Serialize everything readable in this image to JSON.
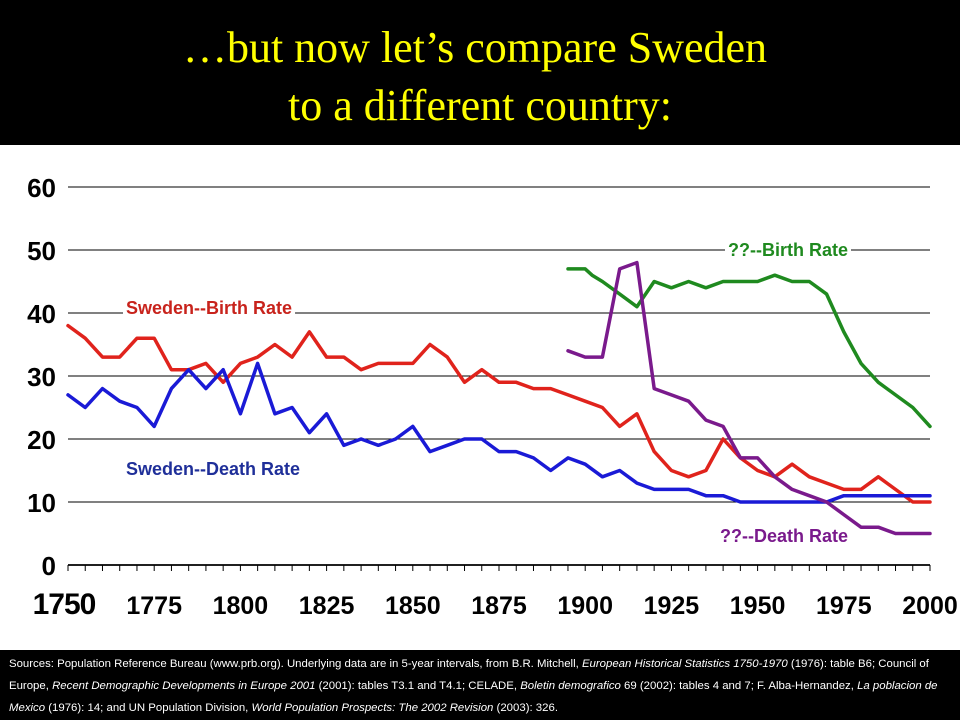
{
  "title": {
    "line1": "…but now let’s compare Sweden",
    "line2": "to a different country:"
  },
  "colors": {
    "title": "#ffff00",
    "sweden_birth": "#e0231c",
    "sweden_death": "#1a1ad6",
    "other_birth": "#1f8a1f",
    "other_death": "#7a1a8c",
    "sweden_birth_label": "#c8231c",
    "sweden_death_label": "#1f2f99",
    "other_birth_label": "#1f8a1f",
    "other_death_label": "#7a1a8c"
  },
  "chart_data": {
    "type": "line",
    "title": "",
    "xlabel": "",
    "ylabel": "",
    "xlim": [
      1750,
      2000
    ],
    "ylim": [
      0,
      60
    ],
    "grid": true,
    "x_ticks": [
      {
        "value": 1750,
        "label": "1750"
      },
      {
        "value": 1775,
        "label": "1775"
      },
      {
        "value": 1800,
        "label": "1800"
      },
      {
        "value": 1825,
        "label": "1825"
      },
      {
        "value": 1850,
        "label": "1850"
      },
      {
        "value": 1875,
        "label": "1875"
      },
      {
        "value": 1900,
        "label": "1900"
      },
      {
        "value": 1925,
        "label": "1925"
      },
      {
        "value": 1950,
        "label": "1950"
      },
      {
        "value": 1975,
        "label": "1975"
      },
      {
        "value": 2000,
        "label": "2000"
      }
    ],
    "y_ticks": [
      {
        "value": 0,
        "label": "0"
      },
      {
        "value": 10,
        "label": "10"
      },
      {
        "value": 20,
        "label": "20"
      },
      {
        "value": 30,
        "label": "30"
      },
      {
        "value": 40,
        "label": "40"
      },
      {
        "value": 50,
        "label": "50"
      },
      {
        "value": 60,
        "label": "60"
      }
    ],
    "series": [
      {
        "name": "Sweden--Birth Rate",
        "color": "#e0231c",
        "x": [
          1750,
          1755,
          1760,
          1765,
          1770,
          1775,
          1780,
          1785,
          1790,
          1795,
          1800,
          1805,
          1810,
          1815,
          1820,
          1825,
          1830,
          1835,
          1840,
          1845,
          1850,
          1855,
          1860,
          1865,
          1870,
          1875,
          1880,
          1885,
          1890,
          1895,
          1900,
          1905,
          1910,
          1915,
          1920,
          1925,
          1930,
          1935,
          1940,
          1945,
          1950,
          1955,
          1960,
          1965,
          1970,
          1975,
          1980,
          1985,
          1990,
          1995,
          2000
        ],
        "values": [
          38,
          36,
          33,
          33,
          36,
          36,
          31,
          31,
          32,
          29,
          32,
          33,
          35,
          33,
          37,
          33,
          33,
          31,
          32,
          32,
          32,
          35,
          33,
          29,
          31,
          29,
          29,
          28,
          28,
          27,
          26,
          25,
          22,
          24,
          18,
          15,
          14,
          15,
          20,
          17,
          15,
          14,
          16,
          14,
          13,
          12,
          12,
          14,
          12,
          10,
          10
        ]
      },
      {
        "name": "Sweden--Death Rate",
        "color": "#1a1ad6",
        "x": [
          1750,
          1755,
          1760,
          1765,
          1770,
          1775,
          1780,
          1785,
          1790,
          1795,
          1800,
          1805,
          1810,
          1815,
          1820,
          1825,
          1830,
          1835,
          1840,
          1845,
          1850,
          1855,
          1860,
          1865,
          1870,
          1875,
          1880,
          1885,
          1890,
          1895,
          1900,
          1905,
          1910,
          1915,
          1920,
          1925,
          1930,
          1935,
          1940,
          1945,
          1950,
          1955,
          1960,
          1965,
          1970,
          1975,
          1980,
          1985,
          1990,
          1995,
          2000
        ],
        "values": [
          27,
          25,
          28,
          26,
          25,
          22,
          28,
          31,
          28,
          31,
          24,
          32,
          24,
          25,
          21,
          24,
          19,
          20,
          19,
          20,
          22,
          18,
          19,
          20,
          20,
          18,
          18,
          17,
          15,
          17,
          16,
          14,
          15,
          13,
          12,
          12,
          12,
          11,
          11,
          10,
          10,
          10,
          10,
          10,
          10,
          11,
          11,
          11,
          11,
          11,
          11
        ]
      },
      {
        "name": "??--Birth Rate",
        "color": "#1f8a1f",
        "x": [
          1895,
          1900,
          1902,
          1905,
          1910,
          1915,
          1920,
          1925,
          1930,
          1935,
          1940,
          1945,
          1950,
          1955,
          1960,
          1965,
          1970,
          1975,
          1980,
          1985,
          1990,
          1995,
          2000
        ],
        "values": [
          47,
          47,
          46,
          45,
          43,
          41,
          45,
          44,
          45,
          44,
          45,
          45,
          45,
          46,
          45,
          45,
          43,
          37,
          32,
          29,
          27,
          25,
          22
        ]
      },
      {
        "name": "??--Death Rate",
        "color": "#7a1a8c",
        "x": [
          1895,
          1900,
          1905,
          1910,
          1915,
          1920,
          1925,
          1930,
          1935,
          1940,
          1945,
          1950,
          1955,
          1960,
          1965,
          1970,
          1975,
          1980,
          1985,
          1990,
          1995,
          2000
        ],
        "values": [
          34,
          33,
          33,
          47,
          48,
          28,
          27,
          26,
          23,
          22,
          17,
          17,
          14,
          12,
          11,
          10,
          8,
          6,
          6,
          5,
          5,
          5
        ]
      }
    ],
    "annotations": [
      {
        "text": "Sweden--Birth Rate",
        "series": "Sweden--Birth Rate"
      },
      {
        "text": "Sweden--Death Rate",
        "series": "Sweden--Death Rate"
      },
      {
        "text": "??--Birth Rate",
        "series": "??--Birth Rate"
      },
      {
        "text": "??--Death Rate",
        "series": "??--Death Rate"
      }
    ]
  },
  "sources": {
    "lead": "Sources:  Population Reference Bureau (www.prb.org).  Underlying data are in 5-year intervals, from B.R. Mitchell, ",
    "t1": "European Historical Statistics 1750-1970",
    "s2": " (1976): table B6; Council of Europe, ",
    "t2": "Recent Demographic Developments in Europe 2001",
    "s3": " (2001): tables T3.1 and T4.1; CELADE, ",
    "t3": "Boletin demografico",
    "s4": " 69 (2002): tables 4 and 7; F. Alba-Hernandez, ",
    "t4": "La poblacion de Mexico",
    "s5": " (1976): 14; and UN Population Division, ",
    "t5": "World Population Prospects: The 2002 Revision",
    "s6": " (2003): 326."
  }
}
